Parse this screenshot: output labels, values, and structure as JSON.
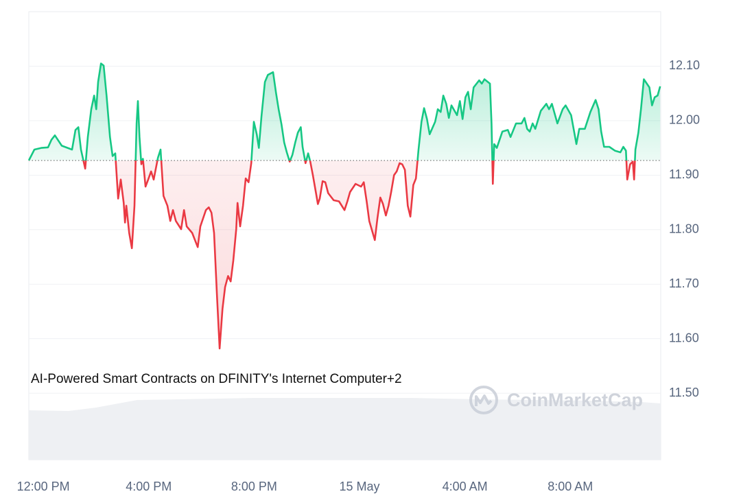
{
  "chart_data": {
    "type": "line",
    "annotation": "AI-Powered Smart Contracts on DFINITY's Internet Computer+2",
    "watermark": "CoinMarketCap",
    "baseline": 11.927,
    "up_color": "#16c784",
    "down_color": "#ea3943",
    "grid": true,
    "xlim": [
      -0.55,
      23.43
    ],
    "xticks": [
      {
        "value": 0,
        "label": "12:00 PM"
      },
      {
        "value": 4,
        "label": "4:00 PM"
      },
      {
        "value": 8,
        "label": "8:00 PM"
      },
      {
        "value": 12,
        "label": "15 May"
      },
      {
        "value": 16,
        "label": "4:00 AM"
      },
      {
        "value": 20,
        "label": "8:00 AM"
      }
    ],
    "ylim": [
      11.378,
      12.2
    ],
    "yticks": [
      {
        "value": 11.5,
        "label": "11.50"
      },
      {
        "value": 11.6,
        "label": "11.60"
      },
      {
        "value": 11.7,
        "label": "11.70"
      },
      {
        "value": 11.8,
        "label": "11.80"
      },
      {
        "value": 11.9,
        "label": "11.90"
      },
      {
        "value": 12.0,
        "label": "12.00"
      },
      {
        "value": 12.1,
        "label": "12.10"
      }
    ],
    "x": [
      -0.55,
      -0.34,
      -0.08,
      0.18,
      0.31,
      0.44,
      0.7,
      1.09,
      1.22,
      1.33,
      1.43,
      1.59,
      1.69,
      1.82,
      1.93,
      2.01,
      2.08,
      2.19,
      2.29,
      2.4,
      2.53,
      2.63,
      2.73,
      2.84,
      2.94,
      3.05,
      3.1,
      3.15,
      3.26,
      3.36,
      3.46,
      3.54,
      3.59,
      3.65,
      3.72,
      3.78,
      3.88,
      3.98,
      4.09,
      4.19,
      4.35,
      4.45,
      4.56,
      4.71,
      4.82,
      4.92,
      5.03,
      5.23,
      5.34,
      5.44,
      5.65,
      5.86,
      5.96,
      6.17,
      6.28,
      6.38,
      6.48,
      6.59,
      6.69,
      6.8,
      6.9,
      7.01,
      7.11,
      7.21,
      7.32,
      7.37,
      7.47,
      7.58,
      7.68,
      7.79,
      7.89,
      7.99,
      8.1,
      8.18,
      8.28,
      8.41,
      8.52,
      8.72,
      8.83,
      8.93,
      9.04,
      9.14,
      9.24,
      9.35,
      9.45,
      9.56,
      9.66,
      9.77,
      9.84,
      9.95,
      10.05,
      10.13,
      10.23,
      10.34,
      10.42,
      10.49,
      10.6,
      10.7,
      10.81,
      11.02,
      11.22,
      11.43,
      11.54,
      11.64,
      11.85,
      12.06,
      12.16,
      12.27,
      12.37,
      12.58,
      12.68,
      12.79,
      12.89,
      13.0,
      13.1,
      13.2,
      13.31,
      13.41,
      13.52,
      13.62,
      13.72,
      13.83,
      13.93,
      14.04,
      14.14,
      14.24,
      14.35,
      14.45,
      14.56,
      14.66,
      14.87,
      14.97,
      15.08,
      15.18,
      15.29,
      15.39,
      15.49,
      15.7,
      15.81,
      15.91,
      16.02,
      16.12,
      16.22,
      16.33,
      16.54,
      16.64,
      16.74,
      16.95,
      17.01,
      17.06,
      17.11,
      17.21,
      17.42,
      17.63,
      17.73,
      17.94,
      18.15,
      18.26,
      18.36,
      18.46,
      18.57,
      18.67,
      18.88,
      19.09,
      19.19,
      19.3,
      19.51,
      19.71,
      19.82,
      20.03,
      20.23,
      20.34,
      20.55,
      20.76,
      20.96,
      21.07,
      21.17,
      21.28,
      21.48,
      21.69,
      21.9,
      22.01,
      22.11,
      22.16,
      22.27,
      22.37,
      22.42,
      22.47,
      22.58,
      22.68,
      22.79,
      23.0,
      23.1,
      23.2,
      23.31,
      23.41
    ],
    "values": [
      11.927,
      11.947,
      11.95,
      11.951,
      11.965,
      11.973,
      11.954,
      11.947,
      11.983,
      11.988,
      11.947,
      11.912,
      11.97,
      12.021,
      12.046,
      12.021,
      12.071,
      12.105,
      12.101,
      12.046,
      11.97,
      11.935,
      11.94,
      11.857,
      11.892,
      11.849,
      11.813,
      11.844,
      11.794,
      11.766,
      11.844,
      11.995,
      12.036,
      11.97,
      11.92,
      11.93,
      11.879,
      11.892,
      11.907,
      11.892,
      11.932,
      11.947,
      11.862,
      11.844,
      11.816,
      11.836,
      11.816,
      11.801,
      11.836,
      11.806,
      11.794,
      11.768,
      11.806,
      11.836,
      11.841,
      11.831,
      11.794,
      11.68,
      11.582,
      11.655,
      11.695,
      11.715,
      11.705,
      11.743,
      11.801,
      11.849,
      11.806,
      11.844,
      11.894,
      11.887,
      11.922,
      11.998,
      11.975,
      11.95,
      12.008,
      12.071,
      12.084,
      12.089,
      12.051,
      12.021,
      11.993,
      11.96,
      11.942,
      11.925,
      11.937,
      11.96,
      11.978,
      11.988,
      11.952,
      11.922,
      11.94,
      11.925,
      11.9,
      11.869,
      11.847,
      11.857,
      11.889,
      11.887,
      11.867,
      11.854,
      11.852,
      11.836,
      11.852,
      11.869,
      11.884,
      11.879,
      11.887,
      11.852,
      11.816,
      11.781,
      11.821,
      11.859,
      11.847,
      11.826,
      11.844,
      11.869,
      11.9,
      11.907,
      11.922,
      11.92,
      11.91,
      11.844,
      11.824,
      11.882,
      11.894,
      11.947,
      11.998,
      12.023,
      12.003,
      11.975,
      11.998,
      12.021,
      12.016,
      12.046,
      12.031,
      12.005,
      12.028,
      12.01,
      12.036,
      12.003,
      12.043,
      12.053,
      12.021,
      12.061,
      12.074,
      12.068,
      12.076,
      12.068,
      11.995,
      11.884,
      11.957,
      11.95,
      11.98,
      11.983,
      11.97,
      11.995,
      11.995,
      12.005,
      11.985,
      11.98,
      11.995,
      11.985,
      12.018,
      12.031,
      12.021,
      12.031,
      11.995,
      12.021,
      12.028,
      12.01,
      11.957,
      11.985,
      11.985,
      12.016,
      12.038,
      12.021,
      11.98,
      11.952,
      11.952,
      11.945,
      11.942,
      11.952,
      11.945,
      11.892,
      11.92,
      11.925,
      11.892,
      11.947,
      11.978,
      12.021,
      12.076,
      12.061,
      12.028,
      12.043,
      12.046,
      12.063
    ]
  }
}
